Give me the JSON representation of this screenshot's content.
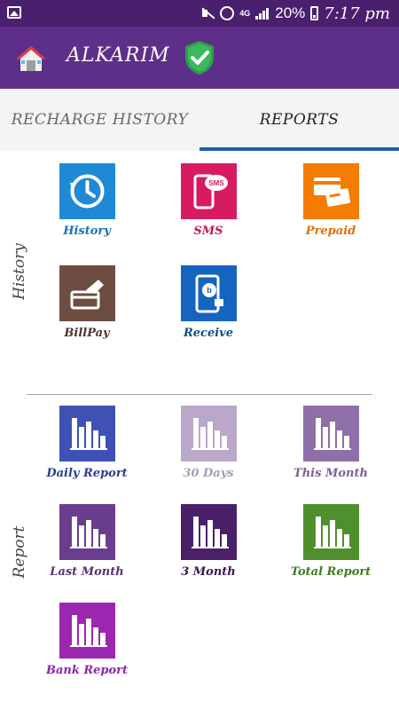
{
  "status_bar": {
    "network": "4G",
    "battery": "20%",
    "time": "7:17 pm",
    "icons": [
      "gallery-icon",
      "mute-icon",
      "alarm-icon",
      "signal-icon",
      "battery-icon"
    ]
  },
  "app_bar": {
    "title": "ALKARIM",
    "icons": [
      "home-icon",
      "shield-check-icon"
    ]
  },
  "tabs": [
    {
      "label": "RECHARGE HISTORY",
      "selected": false
    },
    {
      "label": "REPORTS",
      "selected": true
    }
  ],
  "accent_color": "#1f5fae",
  "sections": {
    "history": {
      "label": "History",
      "tiles": [
        {
          "label": "History",
          "color": "#1e8ad6",
          "label_color": "#1e6fb8",
          "icon": "history-icon"
        },
        {
          "label": "SMS",
          "color": "#d81b60",
          "label_color": "#c2185b",
          "icon": "sms-icon"
        },
        {
          "label": "Prepaid",
          "color": "#f57c00",
          "label_color": "#e07000",
          "icon": "prepaid-card-icon"
        },
        {
          "label": "BillPay",
          "color": "#6d4c41",
          "label_color": "#4e342e",
          "icon": "billpay-icon"
        },
        {
          "label": "Receive",
          "color": "#1565c0",
          "label_color": "#0d4f8b",
          "icon": "receive-icon"
        }
      ]
    },
    "report": {
      "label": "Report",
      "tiles": [
        {
          "label": "Daily Report",
          "color": "#3f51b5",
          "label_color": "#2c3e8f",
          "icon": "bar-chart-icon"
        },
        {
          "label": "30 Days",
          "color": "#b9a8c9",
          "label_color": "#a89bb6",
          "icon": "bar-chart-icon"
        },
        {
          "label": "This Month",
          "color": "#8e6fa8",
          "label_color": "#7d5f96",
          "icon": "bar-chart-icon"
        },
        {
          "label": "Last Month",
          "color": "#6a3d8f",
          "label_color": "#5a3278",
          "icon": "bar-chart-icon"
        },
        {
          "label": "3 Month",
          "color": "#4a2168",
          "label_color": "#3a1552",
          "icon": "bar-chart-icon"
        },
        {
          "label": "Total Report",
          "color": "#4f8f2e",
          "label_color": "#3f7a22",
          "icon": "bar-chart-icon"
        },
        {
          "label": "Bank Report",
          "color": "#9c27b0",
          "label_color": "#8e24aa",
          "icon": "bar-chart-icon"
        }
      ]
    }
  }
}
